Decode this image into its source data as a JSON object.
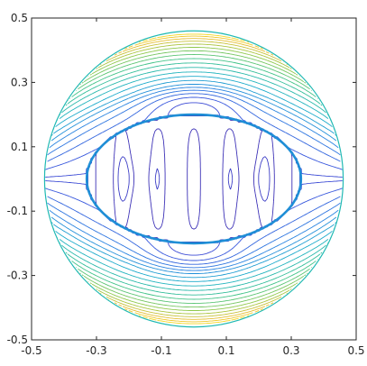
{
  "chart_data": {
    "type": "contour",
    "title": "",
    "xlabel": "",
    "ylabel": "",
    "xlim": [
      -0.5,
      0.5
    ],
    "ylim": [
      -0.5,
      0.5
    ],
    "xticks": [
      "-0.5",
      "-0.3",
      "-0.1",
      "0.1",
      "0.3",
      "0.5"
    ],
    "yticks": [
      "0.5",
      "0.3",
      "0.1",
      "-0.1",
      "-0.3",
      "-0.5"
    ],
    "grid": false,
    "colormap": "parula",
    "domain": {
      "outer_circle": {
        "center": [
          0,
          0
        ],
        "radius": 0.46
      },
      "inner_ellipse": {
        "center": [
          0,
          0
        ],
        "semi_axis_x": 0.33,
        "semi_axis_y": 0.2
      }
    },
    "colors": {
      "low": "#3e26a8",
      "mid_blue": "#2d6fd6",
      "cyan": "#1fb9b3",
      "green": "#7dca5a",
      "yellow": "#f2c92f",
      "high": "#f9e51b"
    }
  }
}
